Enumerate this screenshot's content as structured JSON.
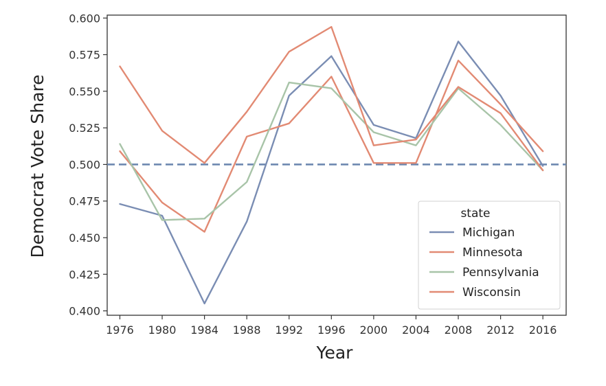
{
  "chart_data": {
    "type": "line",
    "xlabel": "Year",
    "ylabel": "Democrat Vote Share",
    "x": [
      1976,
      1980,
      1984,
      1988,
      1992,
      1996,
      2000,
      2004,
      2008,
      2012,
      2016
    ],
    "x_ticks": [
      "1976",
      "1980",
      "1984",
      "1988",
      "1992",
      "1996",
      "2000",
      "2004",
      "2008",
      "2012",
      "2016"
    ],
    "xlim": [
      1974.8,
      2018.2
    ],
    "ylim": [
      0.397,
      0.602
    ],
    "y_ticks": [
      "0.400",
      "0.425",
      "0.450",
      "0.475",
      "0.500",
      "0.525",
      "0.550",
      "0.575",
      "0.600"
    ],
    "reference_line": {
      "y": 0.5,
      "style": "dashed",
      "color": "#6d88b0"
    },
    "grid": false,
    "legend": {
      "title": "state",
      "position": "lower-right"
    },
    "series": [
      {
        "name": "Michigan",
        "color": "#7a8db3",
        "values": [
          0.473,
          0.465,
          0.405,
          0.461,
          0.547,
          0.574,
          0.527,
          0.518,
          0.584,
          0.547,
          0.499
        ]
      },
      {
        "name": "Minnesota",
        "color": "#e28a73",
        "values": [
          0.509,
          0.474,
          0.454,
          0.519,
          0.528,
          0.56,
          0.501,
          0.501,
          0.571,
          0.541,
          0.509
        ]
      },
      {
        "name": "Pennsylvania",
        "color": "#a8c4a8",
        "values": [
          0.514,
          0.462,
          0.463,
          0.488,
          0.556,
          0.552,
          0.522,
          0.513,
          0.552,
          0.527,
          0.496
        ]
      },
      {
        "name": "Wisconsin",
        "color": "#e28a73",
        "values": [
          0.567,
          0.523,
          0.501,
          0.536,
          0.577,
          0.594,
          0.513,
          0.517,
          0.553,
          0.535,
          0.496
        ]
      }
    ]
  }
}
